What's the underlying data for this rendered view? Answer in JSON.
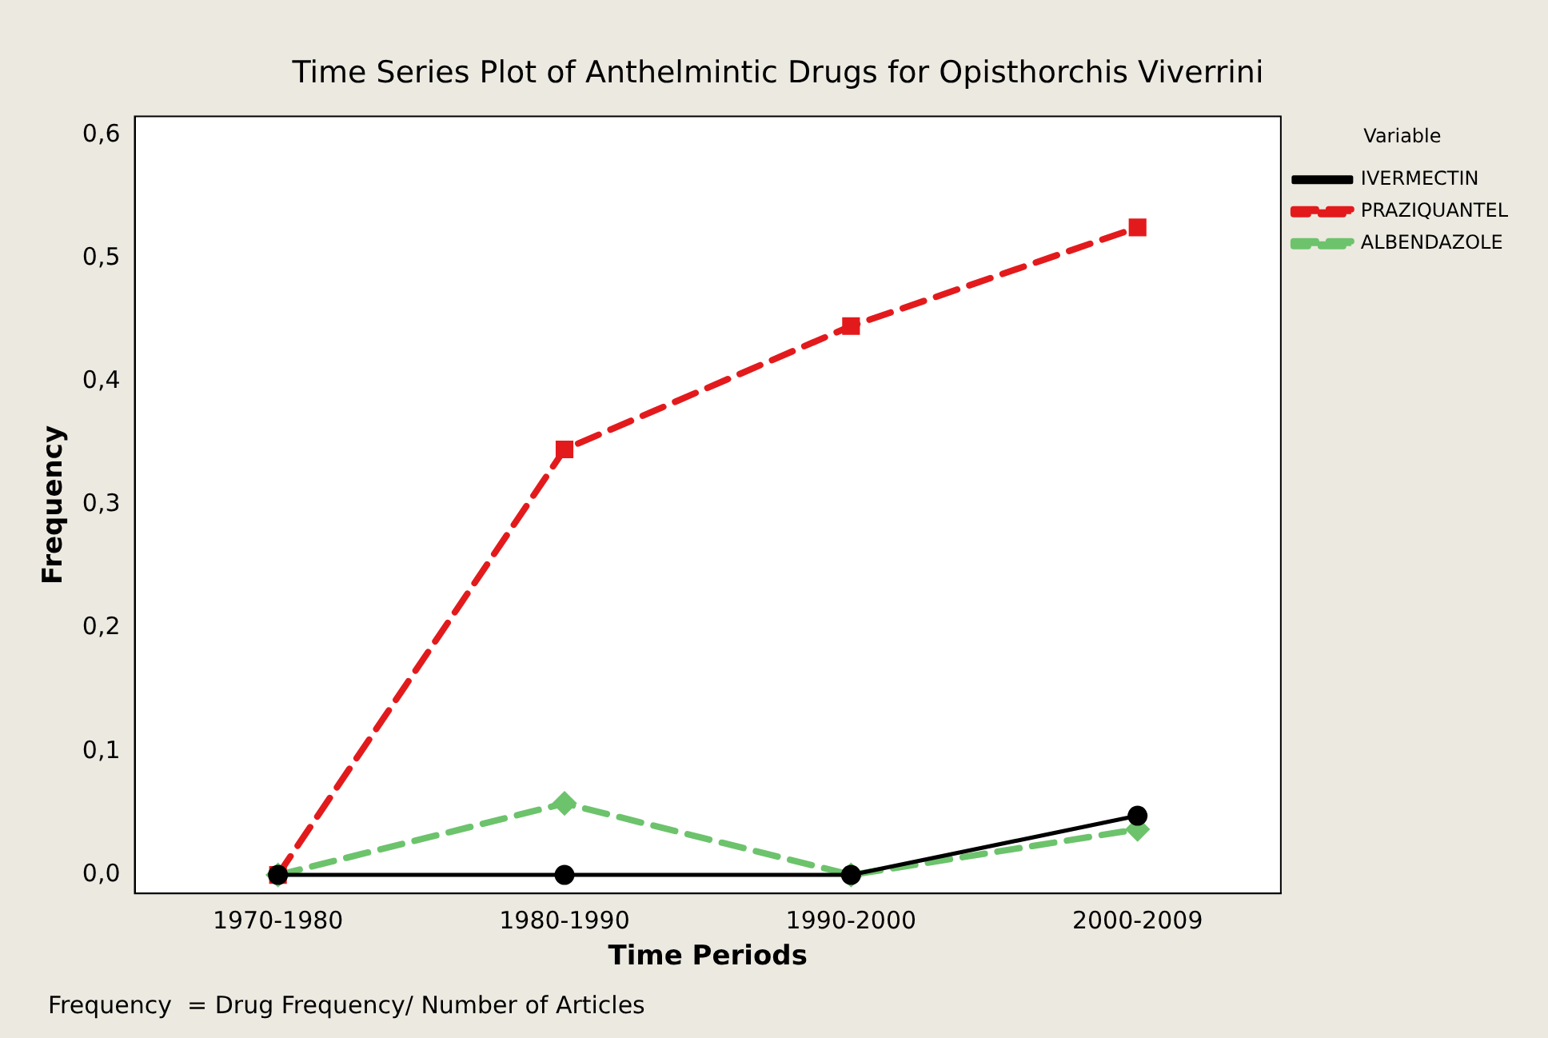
{
  "chart_data": {
    "type": "line",
    "title": "Time Series Plot of Anthelmintic Drugs for Opisthorchis Viverrini",
    "xlabel": "Time Periods",
    "ylabel": "Frequency",
    "legend_title": "Variable",
    "legend": "top right",
    "grid": false,
    "categories": [
      "1970-1980",
      "1980-1990",
      "1990-2000",
      "2000-2009"
    ],
    "ylim": [
      -0.015,
      0.615
    ],
    "yticks": [
      {
        "value": 0,
        "label": "0,0"
      },
      {
        "value": 0.1,
        "label": "0,1"
      },
      {
        "value": 0.2,
        "label": "0,2"
      },
      {
        "value": 0.3,
        "label": "0,3"
      },
      {
        "value": 0.4,
        "label": "0,4"
      },
      {
        "value": 0.5,
        "label": "0,5"
      },
      {
        "value": 0.6,
        "label": "0,6"
      }
    ],
    "series": [
      {
        "name": "IVERMECTIN",
        "color": "#000000",
        "marker": "circle",
        "line_style": "solid",
        "values": [
          0,
          0,
          0,
          0.048
        ]
      },
      {
        "name": "PRAZIQUANTEL",
        "color": "#e31a1c",
        "marker": "square",
        "line_style": "dashed",
        "values": [
          0,
          0.345,
          0.445,
          0.525
        ]
      },
      {
        "name": "ALBENDAZOLE",
        "color": "#6cc36c",
        "marker": "diamond",
        "line_style": "dashed",
        "values": [
          0,
          0.058,
          0,
          0.037
        ]
      }
    ],
    "annotations": [
      "Frequency  = Drug Frequency/ Number of Articles"
    ]
  }
}
